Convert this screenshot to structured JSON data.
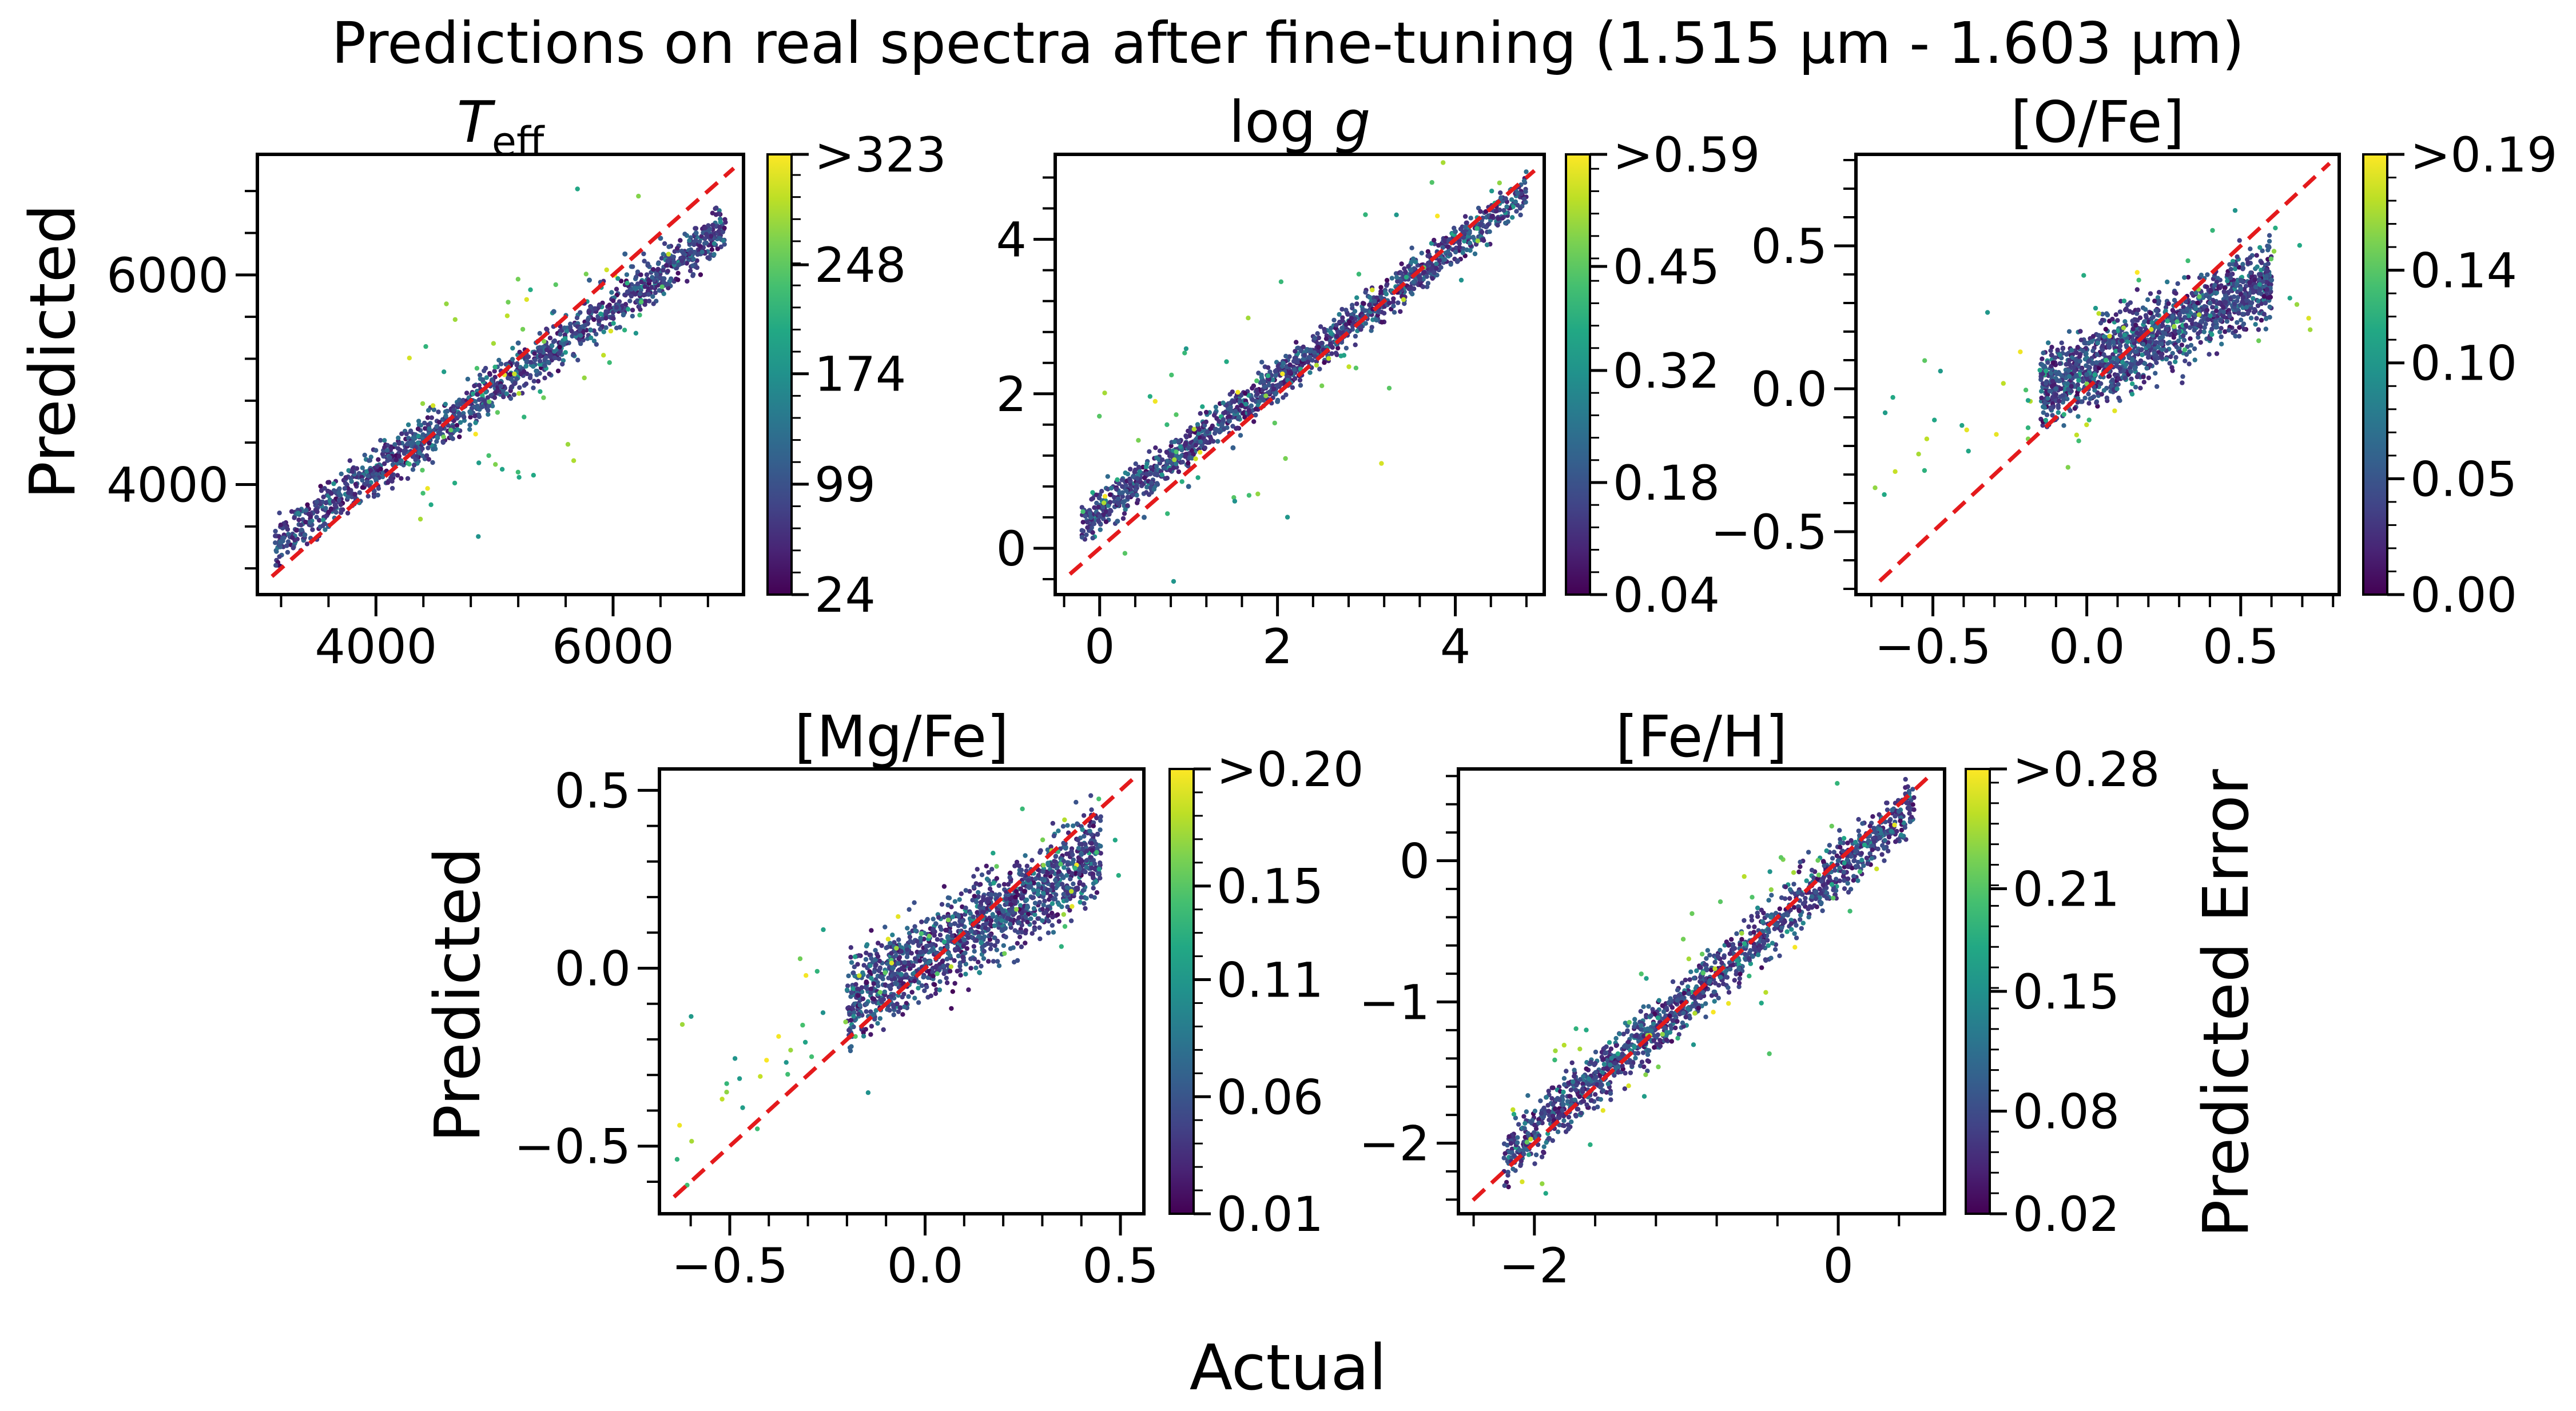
{
  "figure": {
    "title": "Predictions on real spectra after fine-tuning (1.515 μm - 1.603 μm)",
    "xlabel": "Actual",
    "ylabel_top": "Predicted",
    "ylabel_bottom": "Predicted",
    "colorbar_label": "Predicted Error",
    "colormap": "viridis",
    "identity_line_color": "#e41a1c",
    "point_color_low": "#440154",
    "point_color_high": "#fde725"
  },
  "chart_data": [
    {
      "type": "scatter",
      "title": "T_eff",
      "title_main": "T",
      "title_sub": "eff",
      "xlim": [
        3000,
        7100
      ],
      "ylim": [
        2950,
        7150
      ],
      "xticks": [
        {
          "v": 4000,
          "t": "4000"
        },
        {
          "v": 6000,
          "t": "6000"
        }
      ],
      "yticks": [
        {
          "v": 4000,
          "t": "4000"
        },
        {
          "v": 6000,
          "t": "6000"
        }
      ],
      "colorbar": {
        "min": 24,
        "max": 323,
        "ticks": [
          {
            "v": 24,
            "t": "24"
          },
          {
            "v": 99,
            "t": "99"
          },
          {
            "v": 174,
            "t": "174"
          },
          {
            "v": 248,
            "t": "248"
          },
          {
            "v": 323,
            "t": ">323"
          }
        ]
      },
      "trend": {
        "x0": 3150,
        "x1": 6950,
        "y0": 3450,
        "y1": 6450,
        "spread": 110,
        "out_x": [
          4200,
          6500
        ],
        "out_spread": 600
      },
      "points": [
        [
          3200,
          3450
        ],
        [
          3400,
          3520
        ],
        [
          3600,
          3600
        ],
        [
          3800,
          3800
        ],
        [
          4000,
          4050
        ],
        [
          4300,
          4400
        ],
        [
          4600,
          4700
        ],
        [
          4900,
          5000
        ],
        [
          5200,
          5350
        ],
        [
          5500,
          5650
        ],
        [
          5800,
          5950
        ],
        [
          6100,
          6200
        ],
        [
          6400,
          6350
        ],
        [
          6700,
          6400
        ],
        [
          6900,
          6350
        ]
      ]
    },
    {
      "type": "scatter",
      "title": "log g",
      "title_main": "log g",
      "xlim": [
        -0.5,
        5.0
      ],
      "ylim": [
        -0.6,
        5.1
      ],
      "xticks": [
        {
          "v": 0,
          "t": "0"
        },
        {
          "v": 2,
          "t": "2"
        },
        {
          "v": 4,
          "t": "4"
        }
      ],
      "yticks": [
        {
          "v": 0,
          "t": "0"
        },
        {
          "v": 2,
          "t": "2"
        },
        {
          "v": 4,
          "t": "4"
        }
      ],
      "colorbar": {
        "min": 0.04,
        "max": 0.59,
        "ticks": [
          {
            "v": 0.04,
            "t": "0.04"
          },
          {
            "v": 0.18,
            "t": "0.18"
          },
          {
            "v": 0.32,
            "t": "0.32"
          },
          {
            "v": 0.45,
            "t": "0.45"
          },
          {
            "v": 0.59,
            "t": ">0.59"
          }
        ]
      },
      "trend": {
        "x0": -0.2,
        "x1": 4.8,
        "y0": 0.3,
        "y1": 4.6,
        "spread": 0.13,
        "out_x": [
          -0.2,
          4.5
        ],
        "out_spread": 0.8
      },
      "points": [
        [
          -0.1,
          0.4
        ],
        [
          0.2,
          0.35
        ],
        [
          0.5,
          0.4
        ],
        [
          1.0,
          0.8
        ],
        [
          1.5,
          1.3
        ],
        [
          2.0,
          1.9
        ],
        [
          2.5,
          2.5
        ],
        [
          3.0,
          3.0
        ],
        [
          3.5,
          3.6
        ],
        [
          4.0,
          4.1
        ],
        [
          4.5,
          4.5
        ],
        [
          4.7,
          4.6
        ]
      ]
    },
    {
      "type": "scatter",
      "title": "[O/Fe]",
      "xlim": [
        -0.75,
        0.82
      ],
      "ylim": [
        -0.72,
        0.82
      ],
      "xticks": [
        {
          "v": -0.5,
          "t": "−0.5"
        },
        {
          "v": 0.0,
          "t": "0.0"
        },
        {
          "v": 0.5,
          "t": "0.5"
        }
      ],
      "yticks": [
        {
          "v": -0.5,
          "t": "−0.5"
        },
        {
          "v": 0.0,
          "t": "0.0"
        },
        {
          "v": 0.5,
          "t": "0.5"
        }
      ],
      "colorbar": {
        "min": 0.0,
        "max": 0.19,
        "ticks": [
          {
            "v": 0.0,
            "t": "0.00"
          },
          {
            "v": 0.05,
            "t": "0.05"
          },
          {
            "v": 0.1,
            "t": "0.10"
          },
          {
            "v": 0.14,
            "t": "0.14"
          },
          {
            "v": 0.19,
            "t": ">0.19"
          }
        ]
      },
      "trend": {
        "x0": -0.15,
        "x1": 0.6,
        "y0": 0.0,
        "y1": 0.38,
        "spread": 0.07,
        "out_x": [
          -0.7,
          0.75
        ],
        "out_spread": 0.15
      },
      "points": [
        [
          -0.1,
          0.0
        ],
        [
          0.0,
          0.05
        ],
        [
          0.1,
          0.1
        ],
        [
          0.2,
          0.15
        ],
        [
          0.3,
          0.2
        ],
        [
          0.4,
          0.3
        ],
        [
          0.5,
          0.35
        ],
        [
          0.6,
          0.38
        ]
      ]
    },
    {
      "type": "scatter",
      "title": "[Mg/Fe]",
      "xlim": [
        -0.68,
        0.56
      ],
      "ylim": [
        -0.69,
        0.56
      ],
      "xticks": [
        {
          "v": -0.5,
          "t": "−0.5"
        },
        {
          "v": 0.0,
          "t": "0.0"
        },
        {
          "v": 0.5,
          "t": "0.5"
        }
      ],
      "yticks": [
        {
          "v": -0.5,
          "t": "−0.5"
        },
        {
          "v": 0.0,
          "t": "0.0"
        },
        {
          "v": 0.5,
          "t": "0.5"
        }
      ],
      "colorbar": {
        "min": 0.01,
        "max": 0.2,
        "ticks": [
          {
            "v": 0.01,
            "t": "0.01"
          },
          {
            "v": 0.06,
            "t": "0.06"
          },
          {
            "v": 0.11,
            "t": "0.11"
          },
          {
            "v": 0.15,
            "t": "0.15"
          },
          {
            "v": 0.2,
            "t": ">0.20"
          }
        ]
      },
      "trend": {
        "x0": -0.2,
        "x1": 0.45,
        "y0": -0.1,
        "y1": 0.33,
        "spread": 0.06,
        "out_x": [
          -0.65,
          0.5
        ],
        "out_spread": 0.12
      },
      "points": [
        [
          -0.15,
          -0.1
        ],
        [
          0.0,
          0.0
        ],
        [
          0.1,
          0.08
        ],
        [
          0.2,
          0.16
        ],
        [
          0.3,
          0.25
        ],
        [
          0.4,
          0.32
        ]
      ]
    },
    {
      "type": "scatter",
      "title": "[Fe/H]",
      "xlim": [
        -2.5,
        0.7
      ],
      "ylim": [
        -2.5,
        0.65
      ],
      "xticks": [
        {
          "v": -2,
          "t": "−2"
        },
        {
          "v": 0,
          "t": "0"
        }
      ],
      "yticks": [
        {
          "v": -2,
          "t": "−2"
        },
        {
          "v": -1,
          "t": "−1"
        },
        {
          "v": 0,
          "t": "0"
        }
      ],
      "colorbar": {
        "min": 0.02,
        "max": 0.28,
        "ticks": [
          {
            "v": 0.02,
            "t": "0.02"
          },
          {
            "v": 0.08,
            "t": "0.08"
          },
          {
            "v": 0.15,
            "t": "0.15"
          },
          {
            "v": 0.21,
            "t": "0.21"
          },
          {
            "v": 0.28,
            "t": ">0.28"
          }
        ]
      },
      "trend": {
        "x0": -2.2,
        "x1": 0.5,
        "y0": -2.1,
        "y1": 0.4,
        "spread": 0.1,
        "out_x": [
          -2.2,
          0.4
        ],
        "out_spread": 0.35
      },
      "points": [
        [
          -2.1,
          -2.05
        ],
        [
          -1.5,
          -1.5
        ],
        [
          -1.0,
          -1.0
        ],
        [
          -0.5,
          -0.5
        ],
        [
          0.0,
          0.0
        ],
        [
          0.4,
          0.35
        ]
      ]
    }
  ]
}
